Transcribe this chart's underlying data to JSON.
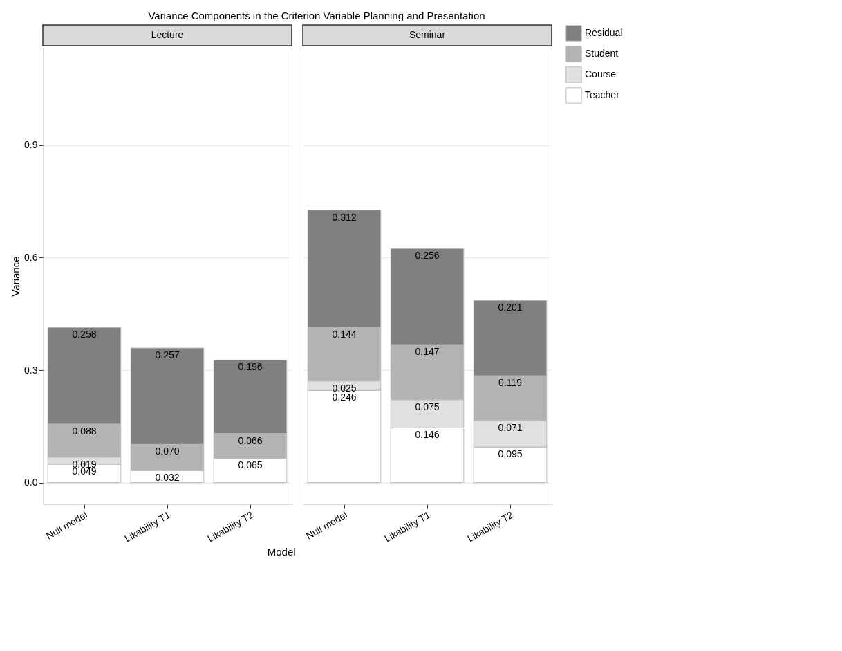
{
  "chart_data": [
    {
      "type": "bar",
      "title": "Variance Components in the Criterion Variable Planning and Presentation",
      "subtitle": "Lecture",
      "xlabel": "Model",
      "ylabel": "Variance",
      "categories": [
        "Null model",
        "Likability T1",
        "Likability T2"
      ],
      "stacked": true,
      "grid": "y",
      "legend": "right",
      "ylim": [
        -0.058,
        1.16
      ],
      "yticks": [
        {
          "value": 0,
          "label": "0.0"
        },
        0.3,
        0.6,
        0.9
      ],
      "series": [
        {
          "name": "Teacher",
          "color": "#ffffff",
          "values": [
            0.049,
            0.032,
            0.065
          ],
          "value_labels": [
            "0.049",
            "0.032",
            "0.065"
          ]
        },
        {
          "name": "Course",
          "color": "#e0e0e0",
          "values": [
            0.019,
            null,
            null
          ],
          "value_labels": [
            "0.019",
            null,
            null
          ]
        },
        {
          "name": "Student",
          "color": "#b3b3b3",
          "values": [
            0.088,
            0.07,
            0.066
          ],
          "value_labels": [
            "0.088",
            "0.070",
            "0.066"
          ]
        },
        {
          "name": "Residual",
          "color": "#7f7f7f",
          "values": [
            0.258,
            0.257,
            0.196
          ],
          "value_labels": [
            "0.258",
            "0.257",
            "0.196"
          ]
        }
      ]
    },
    {
      "type": "bar",
      "subtitle": "Seminar",
      "categories": [
        "Null model",
        "Likability T1",
        "Likability T2"
      ],
      "stacked": true,
      "grid": "y",
      "legend": "right",
      "tick_labels": "x",
      "ylim": [
        -0.058,
        1.16
      ],
      "yticks": [
        0,
        0.3,
        0.6,
        0.9
      ],
      "series": [
        {
          "name": "Teacher",
          "color": "#ffffff",
          "values": [
            0.246,
            0.146,
            0.095
          ],
          "value_labels": [
            "0.246",
            "0.146",
            "0.095"
          ]
        },
        {
          "name": "Course",
          "color": "#e0e0e0",
          "values": [
            0.025,
            0.075,
            0.071
          ],
          "value_labels": [
            "0.025",
            "0.075",
            "0.071"
          ]
        },
        {
          "name": "Student",
          "color": "#b3b3b3",
          "values": [
            0.144,
            0.147,
            0.119
          ],
          "value_labels": [
            "0.144",
            "0.147",
            "0.119"
          ]
        },
        {
          "name": "Residual",
          "color": "#7f7f7f",
          "values": [
            0.312,
            0.256,
            0.201
          ],
          "value_labels": [
            "0.312",
            "0.256",
            "0.201"
          ]
        }
      ]
    }
  ]
}
